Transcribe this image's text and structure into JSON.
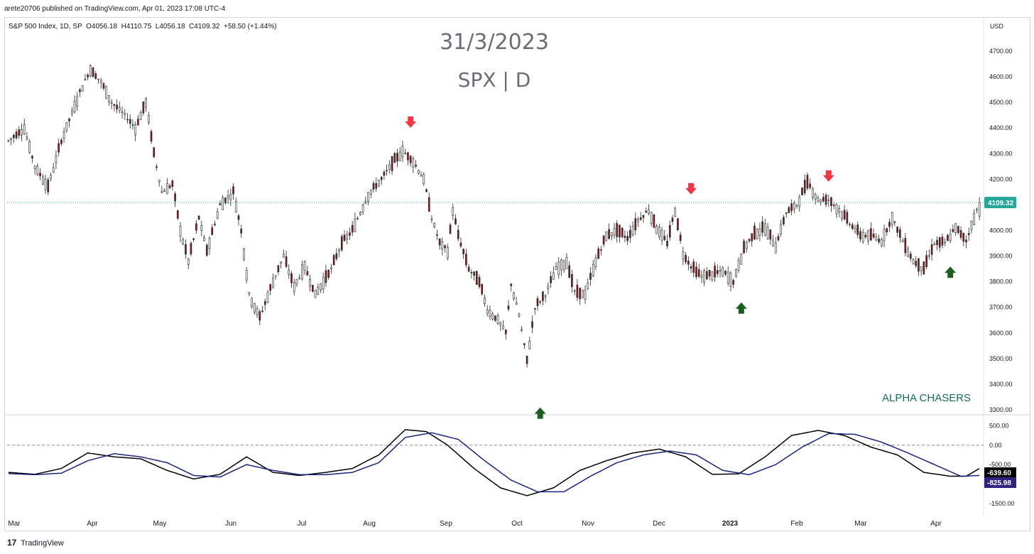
{
  "header": {
    "publish_line": "arete20706 published on TradingView.com, Apr 01, 2023 17:08 UTC-4",
    "ohlc_line": "S&P 500 Index, 1D, SP  O4056.18  H4110.75  L4056.18  C4109.32  +58.50 (+1.44%)",
    "currency": "USD"
  },
  "overlay": {
    "date_text": "31/3/2023",
    "symbol_text": "SPX | D",
    "brand_text": "ALPHA CHASERS"
  },
  "footer": {
    "logo_glyph": "17",
    "label": "TradingView"
  },
  "colors": {
    "up_candle": "#1e4620",
    "down_candle": "#7a1f1f",
    "price_line": "#26a69a",
    "price_badge": "#26a69a",
    "arrow_down": "#f23645",
    "arrow_up": "#1b5e20",
    "osc_fast": "#000000",
    "osc_slow": "#1a237e",
    "osc_fast_badge": "#000000",
    "osc_slow_badge": "#2e237e"
  },
  "chart_data": [
    {
      "type": "candlestick",
      "title": "S&P 500 Index, 1D",
      "ylabel": "USD",
      "ylim": [
        3300,
        4700
      ],
      "y_ticks": [
        "4700.00",
        "4600.00",
        "4500.00",
        "4400.00",
        "4300.00",
        "4200.00",
        "4100.00",
        "4000.00",
        "3900.00",
        "3800.00",
        "3700.00",
        "3600.00",
        "3500.00",
        "3400.00",
        "3300.00"
      ],
      "x_labels": [
        "Mar",
        "Apr",
        "May",
        "Jun",
        "Jul",
        "Aug",
        "Sep",
        "Oct",
        "Nov",
        "Dec",
        "2023",
        "Feb",
        "Mar",
        "Apr"
      ],
      "last_price": 4109.32,
      "last_price_label": "4109.32",
      "path_points": [
        [
          0,
          4350
        ],
        [
          6,
          4400
        ],
        [
          10,
          4250
        ],
        [
          15,
          4170
        ],
        [
          20,
          4350
        ],
        [
          27,
          4540
        ],
        [
          31,
          4630
        ],
        [
          35,
          4580
        ],
        [
          39,
          4500
        ],
        [
          44,
          4450
        ],
        [
          48,
          4400
        ],
        [
          52,
          4500
        ],
        [
          55,
          4300
        ],
        [
          58,
          4150
        ],
        [
          62,
          4180
        ],
        [
          65,
          4000
        ],
        [
          68,
          3880
        ],
        [
          72,
          4050
        ],
        [
          75,
          3920
        ],
        [
          80,
          4100
        ],
        [
          85,
          4150
        ],
        [
          88,
          4000
        ],
        [
          91,
          3750
        ],
        [
          95,
          3660
        ],
        [
          100,
          3800
        ],
        [
          104,
          3900
        ],
        [
          108,
          3780
        ],
        [
          112,
          3860
        ],
        [
          116,
          3750
        ],
        [
          122,
          3850
        ],
        [
          126,
          3950
        ],
        [
          130,
          4000
        ],
        [
          136,
          4140
        ],
        [
          141,
          4200
        ],
        [
          145,
          4260
        ],
        [
          149,
          4310
        ],
        [
          153,
          4270
        ],
        [
          157,
          4200
        ],
        [
          160,
          4050
        ],
        [
          163,
          3950
        ],
        [
          166,
          3920
        ],
        [
          168,
          4080
        ],
        [
          170,
          3980
        ],
        [
          174,
          3850
        ],
        [
          178,
          3800
        ],
        [
          181,
          3690
        ],
        [
          185,
          3650
        ],
        [
          188,
          3600
        ],
        [
          190,
          3790
        ],
        [
          193,
          3670
        ],
        [
          196,
          3490
        ],
        [
          199,
          3700
        ],
        [
          203,
          3750
        ],
        [
          207,
          3850
        ],
        [
          211,
          3880
        ],
        [
          214,
          3760
        ],
        [
          218,
          3750
        ],
        [
          222,
          3880
        ],
        [
          226,
          3980
        ],
        [
          230,
          4000
        ],
        [
          234,
          3970
        ],
        [
          238,
          4040
        ],
        [
          242,
          4080
        ],
        [
          245,
          4010
        ],
        [
          249,
          3950
        ],
        [
          252,
          4080
        ],
        [
          255,
          3910
        ],
        [
          258,
          3860
        ],
        [
          262,
          3820
        ],
        [
          266,
          3830
        ],
        [
          270,
          3840
        ],
        [
          274,
          3800
        ],
        [
          278,
          3930
        ],
        [
          282,
          3990
        ],
        [
          286,
          4010
        ],
        [
          290,
          3940
        ],
        [
          294,
          4070
        ],
        [
          298,
          4100
        ],
        [
          302,
          4190
        ],
        [
          306,
          4120
        ],
        [
          310,
          4120
        ],
        [
          314,
          4080
        ],
        [
          318,
          4030
        ],
        [
          322,
          3980
        ],
        [
          326,
          3980
        ],
        [
          330,
          3960
        ],
        [
          334,
          4050
        ],
        [
          338,
          3960
        ],
        [
          342,
          3880
        ],
        [
          346,
          3850
        ],
        [
          350,
          3950
        ],
        [
          354,
          3950
        ],
        [
          358,
          4010
        ],
        [
          362,
          3960
        ],
        [
          365,
          4050
        ],
        [
          367,
          4109
        ]
      ],
      "period_count": 368,
      "signals": [
        {
          "direction": "down",
          "x": 152,
          "y": 4420,
          "label": ""
        },
        {
          "direction": "down",
          "x": 258,
          "y": 4160,
          "label": ""
        },
        {
          "direction": "down",
          "x": 310,
          "y": 4210,
          "label": ""
        },
        {
          "direction": "up",
          "x": 201,
          "y": 3290,
          "label": ""
        },
        {
          "direction": "up",
          "x": 277,
          "y": 3700,
          "label": ""
        },
        {
          "direction": "up",
          "x": 356,
          "y": 3840,
          "label": ""
        }
      ]
    },
    {
      "type": "line",
      "title": "",
      "ylim": [
        -1650,
        600
      ],
      "y_ticks": [
        "500.00",
        "0.00",
        "-500.00",
        "-1000.00",
        "-1500.00"
      ],
      "zero_line": true,
      "series": [
        {
          "name": "",
          "value_label": "-639.60",
          "values_anchor": [
            [
              0,
              -700
            ],
            [
              10,
              -750
            ],
            [
              20,
              -600
            ],
            [
              30,
              -200
            ],
            [
              40,
              -300
            ],
            [
              50,
              -350
            ],
            [
              60,
              -650
            ],
            [
              70,
              -870
            ],
            [
              80,
              -750
            ],
            [
              90,
              -300
            ],
            [
              100,
              -700
            ],
            [
              110,
              -780
            ],
            [
              120,
              -700
            ],
            [
              130,
              -600
            ],
            [
              140,
              -250
            ],
            [
              150,
              400
            ],
            [
              158,
              350
            ],
            [
              166,
              0
            ],
            [
              176,
              -600
            ],
            [
              186,
              -1100
            ],
            [
              196,
              -1300
            ],
            [
              206,
              -1100
            ],
            [
              216,
              -650
            ],
            [
              226,
              -400
            ],
            [
              236,
              -200
            ],
            [
              246,
              -100
            ],
            [
              256,
              -300
            ],
            [
              266,
              -750
            ],
            [
              276,
              -740
            ],
            [
              286,
              -300
            ],
            [
              296,
              250
            ],
            [
              306,
              380
            ],
            [
              316,
              250
            ],
            [
              326,
              -50
            ],
            [
              336,
              -250
            ],
            [
              346,
              -700
            ],
            [
              356,
              -800
            ],
            [
              362,
              -800
            ],
            [
              367,
              -600
            ]
          ]
        },
        {
          "name": "",
          "value_label": "-825.98",
          "values_anchor": [
            [
              0,
              -730
            ],
            [
              10,
              -760
            ],
            [
              20,
              -720
            ],
            [
              30,
              -400
            ],
            [
              40,
              -220
            ],
            [
              50,
              -300
            ],
            [
              60,
              -450
            ],
            [
              70,
              -780
            ],
            [
              80,
              -820
            ],
            [
              90,
              -500
            ],
            [
              100,
              -650
            ],
            [
              110,
              -760
            ],
            [
              120,
              -760
            ],
            [
              130,
              -700
            ],
            [
              140,
              -450
            ],
            [
              150,
              200
            ],
            [
              160,
              320
            ],
            [
              170,
              150
            ],
            [
              180,
              -400
            ],
            [
              190,
              -900
            ],
            [
              200,
              -1200
            ],
            [
              210,
              -1200
            ],
            [
              220,
              -800
            ],
            [
              230,
              -450
            ],
            [
              240,
              -250
            ],
            [
              250,
              -150
            ],
            [
              260,
              -250
            ],
            [
              270,
              -650
            ],
            [
              280,
              -760
            ],
            [
              290,
              -500
            ],
            [
              300,
              -50
            ],
            [
              310,
              300
            ],
            [
              320,
              280
            ],
            [
              330,
              80
            ],
            [
              340,
              -200
            ],
            [
              350,
              -500
            ],
            [
              360,
              -800
            ],
            [
              367,
              -780
            ]
          ]
        }
      ]
    }
  ]
}
